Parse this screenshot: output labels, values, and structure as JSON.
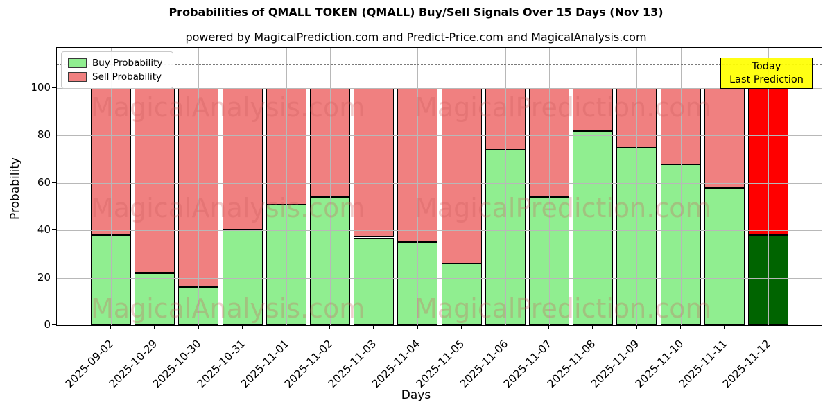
{
  "chart_data": {
    "type": "bar",
    "stacked": true,
    "title": "Probabilities of QMALL TOKEN (QMALL) Buy/Sell Signals Over 15 Days (Nov 13)",
    "subtitle": "powered by MagicalPrediction.com and Predict-Price.com and MagicalAnalysis.com",
    "xlabel": "Days",
    "ylabel": "Probability",
    "ylim": [
      0,
      117
    ],
    "yticks": [
      0,
      20,
      40,
      60,
      80,
      100
    ],
    "grid": true,
    "categories": [
      "2025-09-02",
      "2025-10-29",
      "2025-10-30",
      "2025-10-31",
      "2025-11-01",
      "2025-11-02",
      "2025-11-03",
      "2025-11-04",
      "2025-11-05",
      "2025-11-06",
      "2025-11-07",
      "2025-11-08",
      "2025-11-09",
      "2025-11-10",
      "2025-11-11",
      "2025-11-12"
    ],
    "series": [
      {
        "name": "Buy Probability",
        "values": [
          38,
          22,
          16,
          40,
          51,
          54,
          37,
          35,
          26,
          74,
          54,
          82,
          75,
          68,
          58,
          38
        ]
      },
      {
        "name": "Sell Probability",
        "values": [
          62,
          78,
          84,
          60,
          49,
          46,
          63,
          65,
          74,
          26,
          46,
          18,
          25,
          32,
          42,
          62
        ]
      }
    ],
    "legend": {
      "position": "upper-left",
      "entries": [
        {
          "label": "Buy Probability",
          "color": "#90ee90"
        },
        {
          "label": "Sell Probability",
          "color": "#f08080"
        }
      ]
    },
    "threshold_line": {
      "y": 110,
      "style": "dashed",
      "color": "#7a7a7a"
    },
    "today_annotation": {
      "lines": [
        "Today",
        "Last Prediction"
      ],
      "bg": "#ffff00",
      "category_index": 15
    },
    "colors": {
      "buy": "#90ee90",
      "sell": "#f08080",
      "today_buy": "#006400",
      "today_sell": "#ff0000",
      "bar_edge": "#000000",
      "grid": "#b8b8b8"
    },
    "watermarks": [
      "MagicalAnalysis.com",
      "MagicalPrediction.com"
    ]
  }
}
